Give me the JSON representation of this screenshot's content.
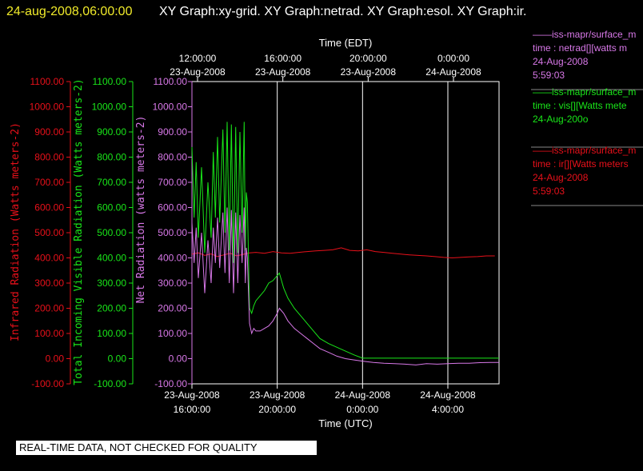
{
  "header": {
    "timestamp": "24-aug-2008,06:00:00",
    "graph_titles": "XY Graph:xy-grid.  XY Graph:netrad.  XY Graph:esol.  XY Graph:ir."
  },
  "disclaimer": "REAL-TIME DATA, NOT CHECKED FOR QUALITY",
  "colors": {
    "ir": "#e8101a",
    "vis": "#19e619",
    "net": "#d878e8",
    "background": "#000000",
    "text": "#ffffff"
  },
  "legend": [
    {
      "line1": "——iss-mapr/surface_m",
      "line2": "time : netrad[][watts m",
      "line3": "24-Aug-2008",
      "line4": "5:59:03",
      "color": "#d878e8"
    },
    {
      "line1": "——iss-mapr/surface_m",
      "line2": "time : vis[][Watts mete",
      "line3": "24-Aug-200o",
      "line4": "",
      "color": "#19e619"
    },
    {
      "line1": "——iss-mapr/surface_m",
      "line2": "time : ir[][Watts meters",
      "line3": "24-Aug-2008",
      "line4": "5:59:03",
      "color": "#e8101a"
    }
  ],
  "chart_data": {
    "type": "line",
    "top_axis": {
      "label": "Time (EDT)",
      "ticks": [
        {
          "line1": "12:00:00",
          "line2": "23-Aug-2008",
          "t": 0
        },
        {
          "line1": "16:00:00",
          "line2": "23-Aug-2008",
          "t": 4
        },
        {
          "line1": "20:00:00",
          "line2": "23-Aug-2008",
          "t": 8
        },
        {
          "line1": "0:00:00",
          "line2": "24-Aug-2008",
          "t": 12
        }
      ]
    },
    "bottom_axis": {
      "label": "Time (UTC)",
      "ticks": [
        {
          "line1": "23-Aug-2008",
          "line2": "16:00:00",
          "t": 0
        },
        {
          "line1": "23-Aug-2008",
          "line2": "20:00:00",
          "t": 4
        },
        {
          "line1": "24-Aug-2008",
          "line2": "0:00:00",
          "t": 8
        },
        {
          "line1": "24-Aug-2008",
          "line2": "4:00:00",
          "t": 12
        }
      ]
    },
    "xlim": [
      0,
      14.4
    ],
    "ylim": [
      -100,
      1100
    ],
    "y_ticks": [
      "1100.00",
      "1000.00",
      "900.00",
      "800.00",
      "700.00",
      "600.00",
      "500.00",
      "400.00",
      "300.00",
      "200.00",
      "100.00",
      "0.00",
      "-100.00"
    ],
    "y_tick_values": [
      1100,
      1000,
      900,
      800,
      700,
      600,
      500,
      400,
      300,
      200,
      100,
      0,
      -100
    ],
    "y_axes": [
      {
        "label": "Infrared Radiation (Watts meters-2)",
        "color": "#e8101a"
      },
      {
        "label": "Total Incoming Visible Radiation (Watts meters-2)",
        "color": "#19e619"
      },
      {
        "label": "Net Radiation (watts meters-2)",
        "color": "#d878e8"
      }
    ],
    "grid_x": [
      4,
      8,
      12
    ],
    "series": [
      {
        "key": "ir",
        "color": "#e8101a",
        "x": [
          0,
          0.3,
          0.6,
          0.9,
          1.2,
          1.5,
          1.8,
          2.1,
          2.4,
          2.7,
          3,
          3.4,
          3.8,
          4.2,
          4.6,
          5,
          5.4,
          5.8,
          6.2,
          6.6,
          7,
          7.4,
          7.8,
          8.2,
          8.6,
          9,
          9.4,
          9.8,
          10.2,
          10.6,
          11,
          11.4,
          11.8,
          12.2,
          12.6,
          13,
          13.4,
          13.8,
          14.2
        ],
        "y": [
          415,
          420,
          410,
          416,
          405,
          412,
          418,
          408,
          414,
          420,
          422,
          418,
          425,
          420,
          418,
          422,
          425,
          428,
          430,
          432,
          440,
          430,
          428,
          432,
          425,
          422,
          418,
          415,
          412,
          410,
          408,
          405,
          402,
          400,
          402,
          404,
          405,
          408,
          408
        ]
      },
      {
        "key": "vis",
        "color": "#19e619",
        "x": [
          0,
          0.1,
          0.2,
          0.3,
          0.45,
          0.6,
          0.75,
          0.9,
          1.0,
          1.1,
          1.2,
          1.3,
          1.45,
          1.55,
          1.65,
          1.75,
          1.85,
          1.95,
          2.05,
          2.15,
          2.25,
          2.35,
          2.45,
          2.5,
          2.55,
          2.6,
          2.7,
          2.8,
          2.9,
          3.0,
          3.2,
          3.4,
          3.6,
          3.8,
          4.0,
          4.1,
          4.3,
          4.5,
          4.8,
          5.1,
          5.4,
          5.7,
          6.0,
          6.4,
          6.8,
          7.2,
          7.6,
          8.0,
          8.5,
          9,
          9.5,
          10,
          10.5,
          11,
          11.5,
          12,
          12.5,
          13,
          13.5,
          14,
          14.4
        ],
        "y": [
          840,
          560,
          780,
          480,
          760,
          420,
          700,
          480,
          820,
          560,
          880,
          540,
          910,
          500,
          940,
          430,
          930,
          380,
          920,
          420,
          900,
          500,
          940,
          430,
          660,
          620,
          200,
          180,
          210,
          230,
          250,
          270,
          300,
          310,
          330,
          340,
          280,
          240,
          200,
          170,
          140,
          110,
          80,
          60,
          45,
          30,
          15,
          2,
          2,
          2,
          2,
          2,
          2,
          2,
          2,
          2,
          2,
          2,
          2,
          2,
          2
        ]
      },
      {
        "key": "net",
        "color": "#d878e8",
        "x": [
          0,
          0.1,
          0.2,
          0.3,
          0.45,
          0.6,
          0.75,
          0.9,
          1.0,
          1.1,
          1.2,
          1.3,
          1.45,
          1.55,
          1.65,
          1.75,
          1.85,
          1.95,
          2.05,
          2.15,
          2.25,
          2.35,
          2.45,
          2.5,
          2.55,
          2.6,
          2.7,
          2.8,
          2.9,
          3.0,
          3.2,
          3.4,
          3.6,
          3.8,
          4.0,
          4.1,
          4.3,
          4.5,
          4.8,
          5.1,
          5.4,
          5.7,
          6.0,
          6.4,
          6.8,
          7.2,
          7.6,
          8.0,
          8.5,
          9,
          9.5,
          10,
          10.5,
          11,
          11.5,
          12,
          12.5,
          13,
          13.5,
          14,
          14.4
        ],
        "y": [
          540,
          380,
          520,
          320,
          500,
          260,
          470,
          300,
          520,
          380,
          560,
          360,
          580,
          340,
          600,
          300,
          590,
          260,
          580,
          300,
          570,
          380,
          600,
          300,
          440,
          400,
          140,
          100,
          120,
          110,
          110,
          120,
          130,
          150,
          180,
          200,
          180,
          150,
          120,
          100,
          80,
          60,
          40,
          25,
          10,
          0,
          -5,
          -10,
          -15,
          -18,
          -20,
          -22,
          -25,
          -20,
          -22,
          -20,
          -18,
          -18,
          -16,
          -15,
          -15
        ]
      }
    ]
  }
}
